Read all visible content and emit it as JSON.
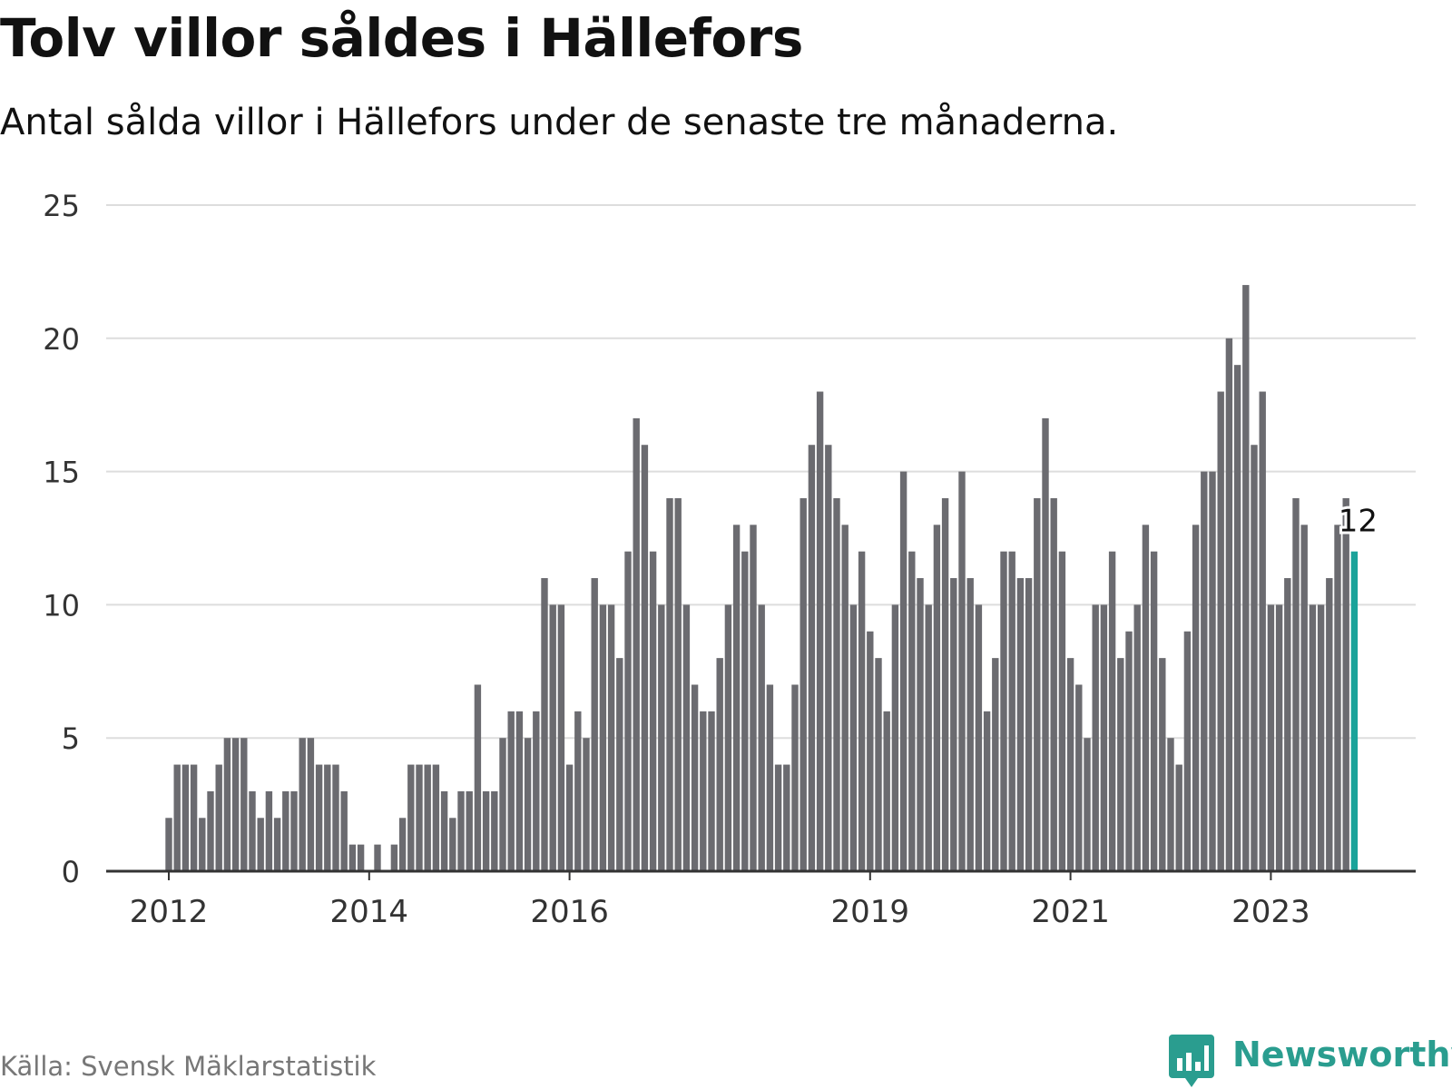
{
  "title": "Tolv villor såldes i Hällefors",
  "subtitle": "Antal sålda villor i Hällefors under de senaste tre månaderna.",
  "source": "Källa: Svensk Mäklarstatistik",
  "brand": {
    "name": "Newsworthy",
    "logo_icon": "bar-chart-speech-bubble-icon",
    "color": "#2a9d8f"
  },
  "colors": {
    "bar": "#6b6b70",
    "highlight": "#1aa39a",
    "grid": "#dddddd",
    "axis": "#333333",
    "text": "#111111"
  },
  "chart_data": {
    "type": "bar",
    "title": "Tolv villor såldes i Hällefors",
    "subtitle": "Antal sålda villor i Hällefors under de senaste tre månaderna.",
    "ylim": [
      0,
      25
    ],
    "yticks": [
      0,
      5,
      10,
      15,
      20,
      25
    ],
    "grid": true,
    "x_start": "2012-01",
    "x_end": "2023-11",
    "xticks": [
      {
        "label": "2012",
        "date": "2012-01"
      },
      {
        "label": "2014",
        "date": "2014-01"
      },
      {
        "label": "2016",
        "date": "2016-01"
      },
      {
        "label": "2019",
        "date": "2019-01"
      },
      {
        "label": "2021",
        "date": "2021-01"
      },
      {
        "label": "2023",
        "date": "2023-01"
      }
    ],
    "values": [
      2,
      4,
      4,
      4,
      2,
      3,
      4,
      5,
      5,
      5,
      3,
      2,
      3,
      2,
      3,
      3,
      5,
      5,
      4,
      4,
      4,
      3,
      1,
      1,
      0,
      1,
      0,
      1,
      2,
      4,
      4,
      4,
      4,
      3,
      2,
      3,
      3,
      7,
      3,
      3,
      5,
      6,
      6,
      5,
      6,
      11,
      10,
      10,
      4,
      6,
      5,
      11,
      10,
      10,
      8,
      12,
      17,
      16,
      12,
      10,
      14,
      14,
      10,
      7,
      6,
      6,
      8,
      10,
      13,
      12,
      13,
      10,
      7,
      4,
      4,
      7,
      14,
      16,
      18,
      16,
      14,
      13,
      10,
      12,
      9,
      8,
      6,
      10,
      15,
      12,
      11,
      10,
      13,
      14,
      11,
      15,
      11,
      10,
      6,
      8,
      12,
      12,
      11,
      11,
      14,
      17,
      14,
      12,
      8,
      7,
      5,
      10,
      10,
      12,
      8,
      9,
      10,
      13,
      12,
      8,
      5,
      4,
      9,
      13,
      15,
      15,
      18,
      20,
      19,
      22,
      16,
      18,
      10,
      10,
      11,
      14,
      13,
      10,
      10,
      11,
      13,
      14,
      12
    ],
    "highlight": {
      "date": "2023-11",
      "value": 12,
      "label": "12"
    }
  }
}
